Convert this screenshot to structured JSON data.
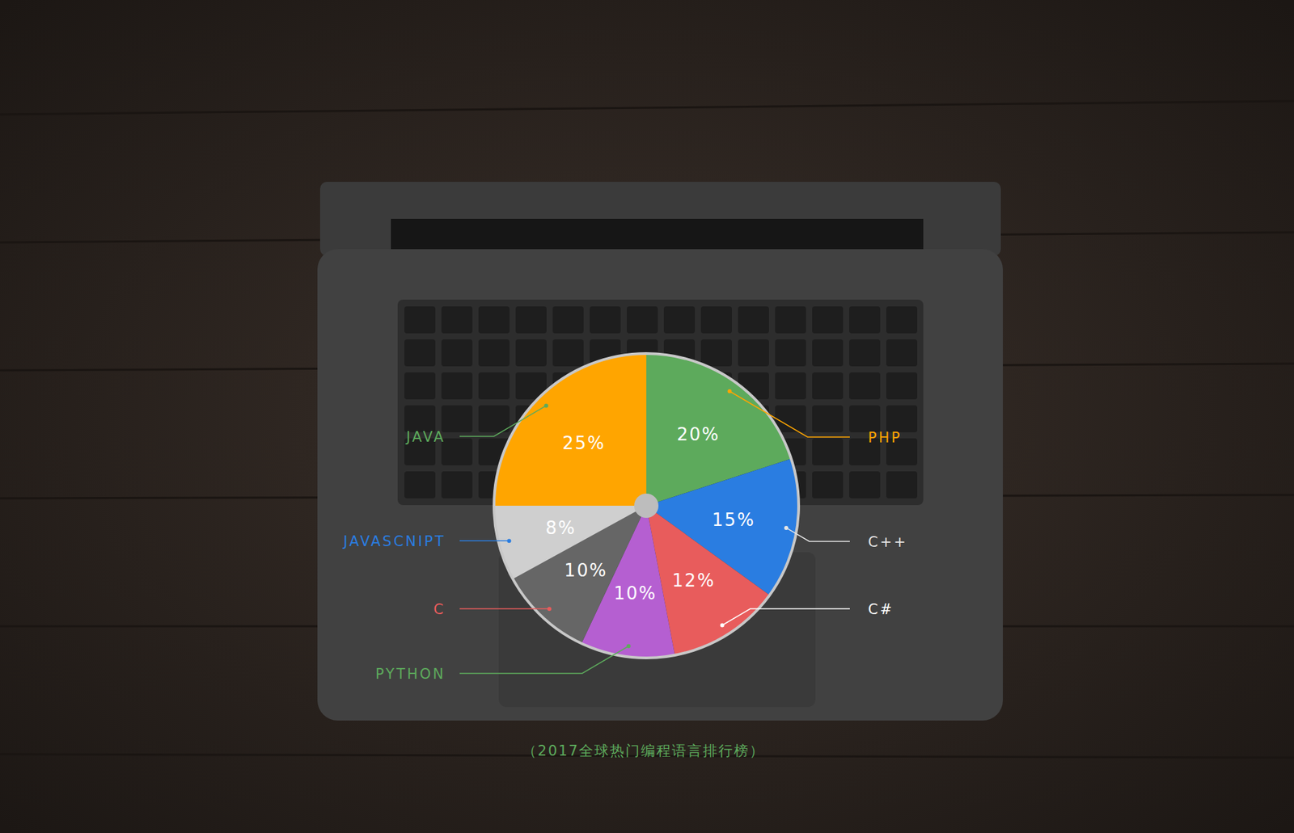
{
  "chart_data": {
    "type": "pie",
    "title": "（2017全球热门编程语言排行榜）",
    "categories": [
      "PHP",
      "C++",
      "C#",
      "PYTHON",
      "C",
      "JAVASCNIPT",
      "JAVA"
    ],
    "values": [
      20,
      15,
      12,
      10,
      10,
      8,
      25
    ],
    "value_labels": [
      "20%",
      "15%",
      "12%",
      "10%",
      "10%",
      "8%",
      "25%"
    ],
    "colors": [
      "#5daa5c",
      "#2a7de1",
      "#e85c5c",
      "#b55fd1",
      "#666666",
      "#cfcfcf",
      "#ffa500"
    ],
    "data_labels": true
  }
}
